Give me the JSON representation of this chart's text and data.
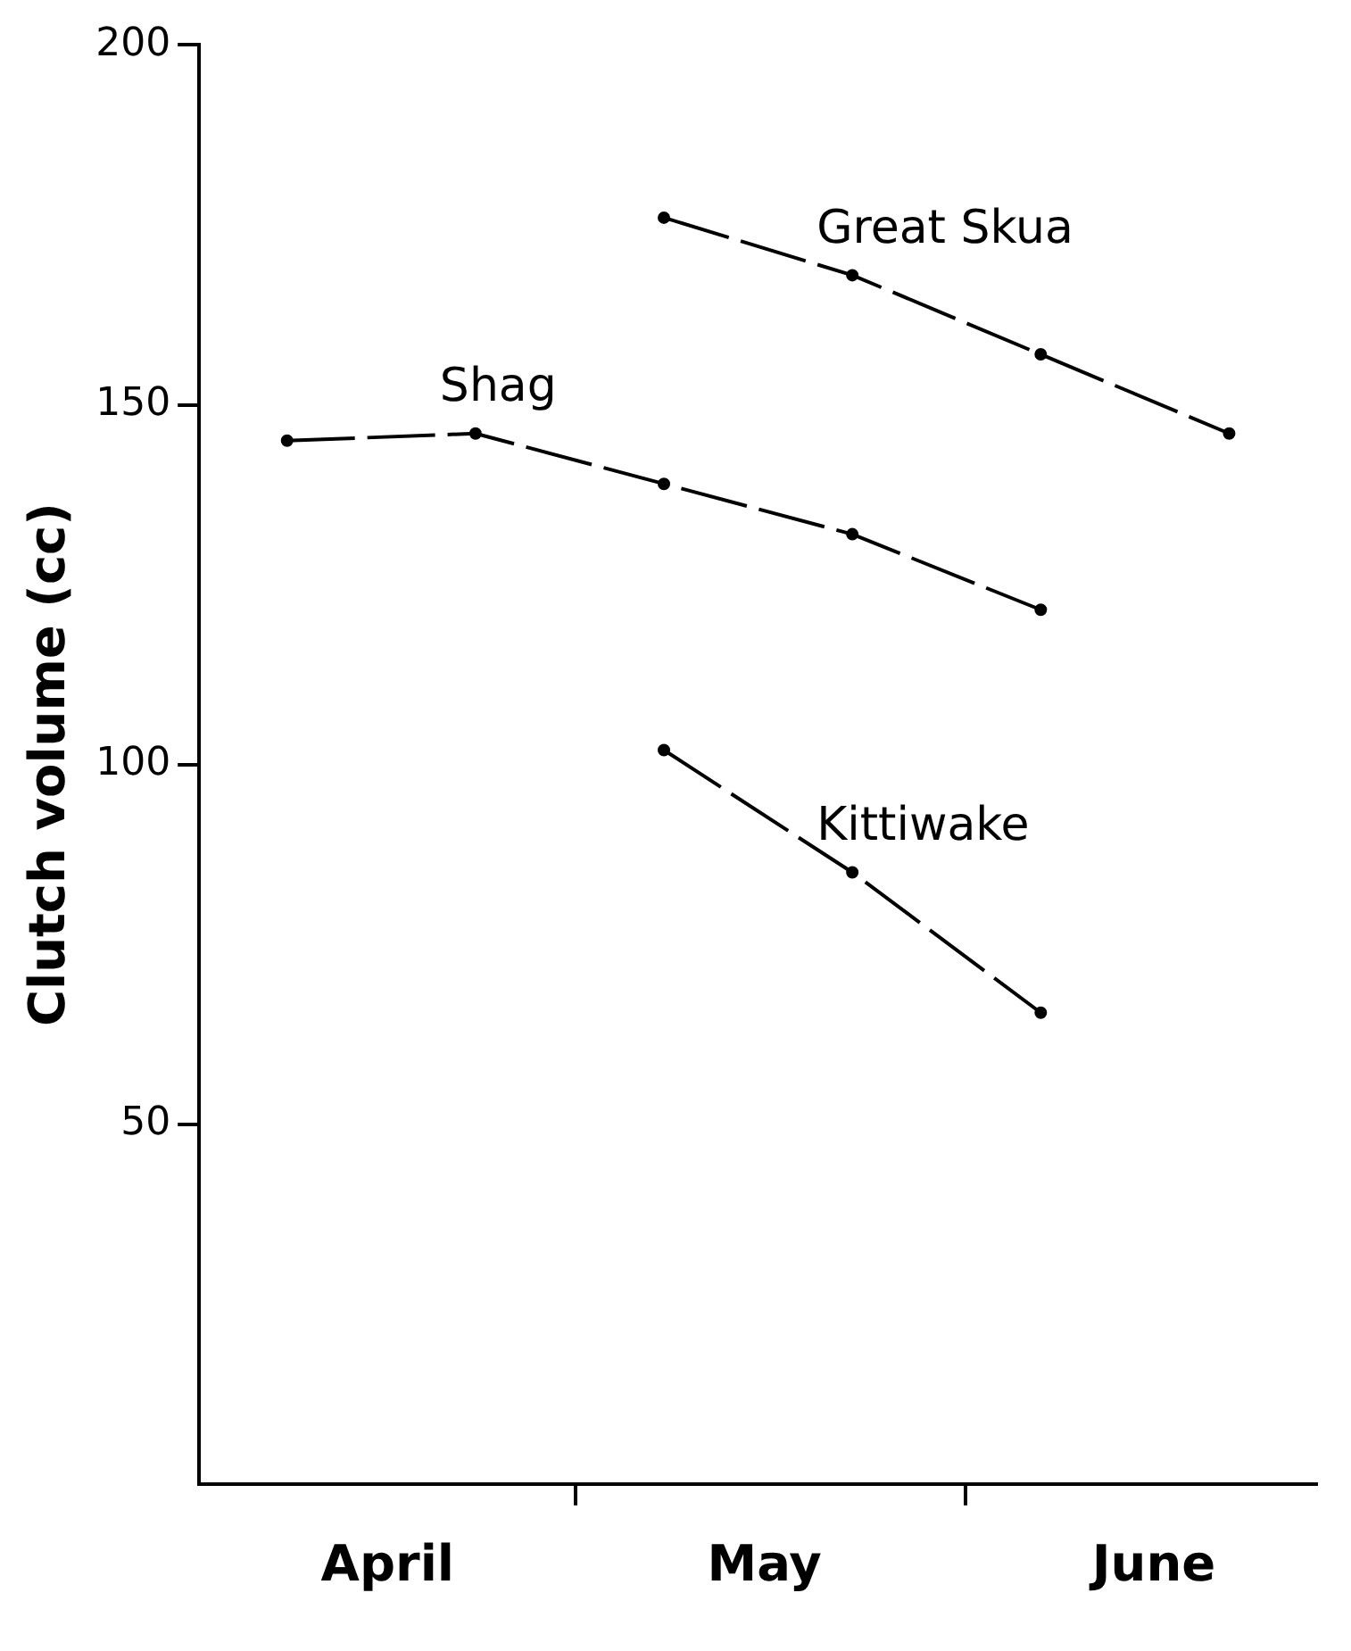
{
  "chart_data": {
    "type": "line",
    "ylabel": "Clutch volume (cc)",
    "ylim": [
      0,
      200
    ],
    "yticks": [
      50,
      100,
      150,
      200
    ],
    "xlim": [
      "--04-01",
      "--06-29"
    ],
    "xticks": [
      {
        "value": "--05-01",
        "label": null
      },
      {
        "value": "--06-01",
        "label": null
      },
      {
        "value": "--04-16",
        "label": "April"
      },
      {
        "value": "--05-16",
        "label": "May"
      },
      {
        "value": "--06-16",
        "label": "June"
      }
    ],
    "grid": false,
    "legend": false,
    "marker": "circle",
    "line_style": "dashed",
    "series": [
      {
        "name": "Shag",
        "color": "#000000",
        "x": [
          "--04-08",
          "--04-23",
          "--05-08",
          "--05-23",
          "--06-07"
        ],
        "values": [
          145,
          146,
          139,
          132,
          121.5
        ]
      },
      {
        "name": "Great Skua",
        "color": "#000000",
        "x": [
          "--05-08",
          "--05-23",
          "--06-07",
          "--06-22"
        ],
        "values": [
          176,
          168,
          157,
          146
        ]
      },
      {
        "name": "Kittiwake",
        "color": "#000000",
        "x": [
          "--05-08",
          "--05-23",
          "--06-07"
        ],
        "values": [
          102,
          85,
          65.5
        ]
      }
    ]
  }
}
